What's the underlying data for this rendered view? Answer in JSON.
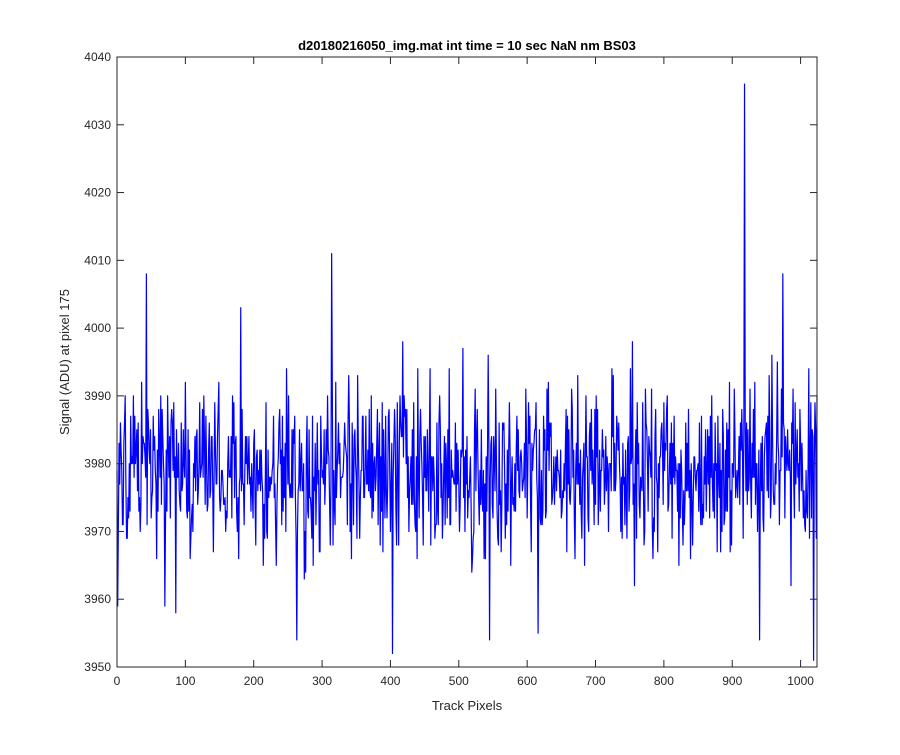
{
  "chart_data": {
    "type": "line",
    "title": "d20180216050_img.mat int time = 10 sec  NaN nm BS03",
    "xlabel": "Track Pixels",
    "ylabel": "Signal (ADU) at pixel 175",
    "xlim": [
      0,
      1024
    ],
    "ylim": [
      3950,
      4040
    ],
    "xticks": [
      0,
      100,
      200,
      300,
      400,
      500,
      600,
      700,
      800,
      900,
      1000
    ],
    "yticks": [
      3950,
      3960,
      3970,
      3980,
      3990,
      4000,
      4010,
      4020,
      4030,
      4040
    ],
    "grid": false,
    "series": [
      {
        "color": "#0000ff",
        "baseline": 3979,
        "noise_amplitude": 9,
        "n_points": 1024,
        "notable_points": [
          {
            "x": 1,
            "y": 3959
          },
          {
            "x": 43,
            "y": 4008
          },
          {
            "x": 86,
            "y": 3958
          },
          {
            "x": 263,
            "y": 3954
          },
          {
            "x": 314,
            "y": 4011
          },
          {
            "x": 403,
            "y": 3952
          },
          {
            "x": 545,
            "y": 3954
          },
          {
            "x": 616,
            "y": 3955
          },
          {
            "x": 918,
            "y": 4036
          },
          {
            "x": 940,
            "y": 3954
          },
          {
            "x": 974,
            "y": 4008
          },
          {
            "x": 1019,
            "y": 3951
          },
          {
            "x": 1024,
            "y": 3990
          }
        ]
      }
    ]
  }
}
